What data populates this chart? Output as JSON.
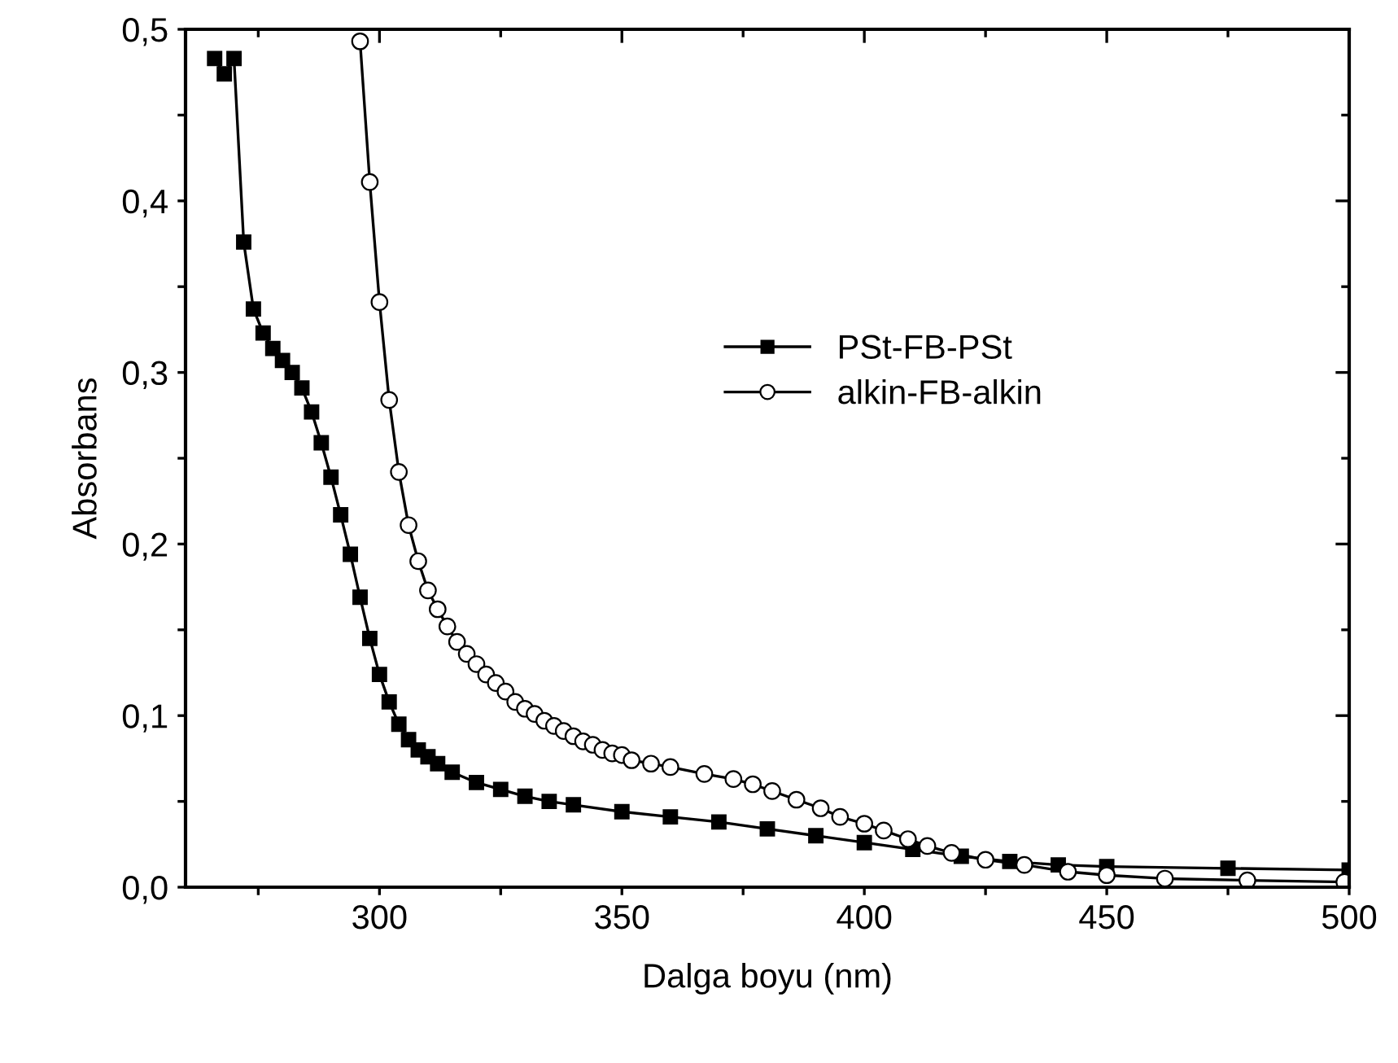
{
  "chart_data": {
    "type": "line",
    "xlabel": "Dalga boyu (nm)",
    "ylabel": "Absorbans",
    "xlim": [
      260,
      500
    ],
    "ylim": [
      0,
      0.5
    ],
    "xticks": [
      {
        "value": 275,
        "label": null
      },
      300,
      {
        "value": 325,
        "label": null
      },
      350,
      {
        "value": 375,
        "label": null
      },
      400,
      {
        "value": 425,
        "label": null
      },
      450,
      {
        "value": 475,
        "label": null
      },
      500
    ],
    "yticks": [
      {
        "value": 0,
        "label": "0,0"
      },
      {
        "value": 0.05,
        "label": null
      },
      {
        "value": 0.1,
        "label": "0,1"
      },
      {
        "value": 0.15,
        "label": null
      },
      {
        "value": 0.2,
        "label": "0,2"
      },
      {
        "value": 0.25,
        "label": null
      },
      {
        "value": 0.3,
        "label": "0,3"
      },
      {
        "value": 0.35,
        "label": null
      },
      {
        "value": 0.4,
        "label": "0,4"
      },
      {
        "value": 0.45,
        "label": null
      },
      {
        "value": 0.5,
        "label": "0,5"
      }
    ],
    "grid": false,
    "legend": "center",
    "line_style": "solid",
    "series": [
      {
        "name": "PSt-FB-PSt",
        "color": "#000000",
        "marker": "square",
        "x": [
          266,
          268,
          270,
          272,
          274,
          276,
          278,
          280,
          282,
          284,
          286,
          288,
          290,
          292,
          294,
          296,
          298,
          300,
          302,
          304,
          306,
          308,
          310,
          312,
          315,
          320,
          325,
          330,
          335,
          340,
          350,
          360,
          370,
          380,
          390,
          400,
          410,
          420,
          430,
          440,
          450,
          475,
          500
        ],
        "values": [
          0.483,
          0.474,
          0.483,
          0.376,
          0.337,
          0.323,
          0.314,
          0.307,
          0.3,
          0.291,
          0.277,
          0.259,
          0.239,
          0.217,
          0.194,
          0.169,
          0.145,
          0.124,
          0.108,
          0.095,
          0.086,
          0.08,
          0.076,
          0.072,
          0.067,
          0.061,
          0.057,
          0.053,
          0.05,
          0.048,
          0.044,
          0.041,
          0.038,
          0.034,
          0.03,
          0.026,
          0.022,
          0.018,
          0.015,
          0.013,
          0.012,
          0.011,
          0.01
        ]
      },
      {
        "name": "alkin-FB-alkin",
        "color": "#000000",
        "marker": "circle",
        "x": [
          296,
          298,
          300,
          302,
          304,
          306,
          308,
          310,
          312,
          314,
          316,
          318,
          320,
          322,
          324,
          326,
          328,
          330,
          332,
          334,
          336,
          338,
          340,
          342,
          344,
          346,
          348,
          350,
          352,
          356,
          360,
          367,
          373,
          377,
          381,
          386,
          391,
          395,
          400,
          404,
          409,
          413,
          418,
          425,
          433,
          442,
          450,
          462,
          479,
          499
        ],
        "values": [
          0.493,
          0.411,
          0.341,
          0.284,
          0.242,
          0.211,
          0.19,
          0.173,
          0.162,
          0.152,
          0.143,
          0.136,
          0.13,
          0.124,
          0.119,
          0.114,
          0.108,
          0.104,
          0.101,
          0.097,
          0.094,
          0.091,
          0.088,
          0.085,
          0.083,
          0.08,
          0.078,
          0.077,
          0.074,
          0.072,
          0.07,
          0.066,
          0.063,
          0.06,
          0.056,
          0.051,
          0.046,
          0.041,
          0.037,
          0.033,
          0.028,
          0.024,
          0.02,
          0.016,
          0.013,
          0.009,
          0.007,
          0.005,
          0.004,
          0.003
        ]
      }
    ]
  }
}
